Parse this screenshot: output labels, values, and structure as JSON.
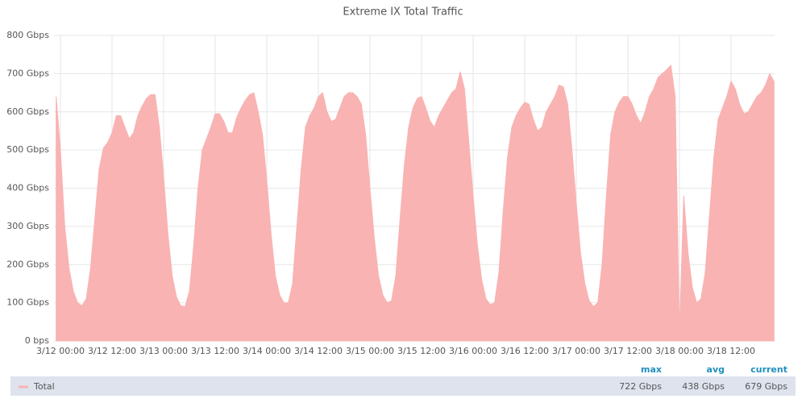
{
  "chart_data": {
    "type": "area",
    "title": "Extreme IX Total Traffic",
    "x": [
      "3/11 23:00",
      "3/12 00:00",
      "3/12 01:00",
      "3/12 02:00",
      "3/12 03:00",
      "3/12 04:00",
      "3/12 05:00",
      "3/12 06:00",
      "3/12 07:00",
      "3/12 08:00",
      "3/12 09:00",
      "3/12 10:00",
      "3/12 11:00",
      "3/12 12:00",
      "3/12 13:00",
      "3/12 14:00",
      "3/12 15:00",
      "3/12 16:00",
      "3/12 17:00",
      "3/12 18:00",
      "3/12 19:00",
      "3/12 20:00",
      "3/12 21:00",
      "3/12 22:00",
      "3/12 23:00",
      "3/13 00:00",
      "3/13 01:00",
      "3/13 02:00",
      "3/13 03:00",
      "3/13 04:00",
      "3/13 05:00",
      "3/13 06:00",
      "3/13 07:00",
      "3/13 08:00",
      "3/13 09:00",
      "3/13 10:00",
      "3/13 11:00",
      "3/13 12:00",
      "3/13 13:00",
      "3/13 14:00",
      "3/13 15:00",
      "3/13 16:00",
      "3/13 17:00",
      "3/13 18:00",
      "3/13 19:00",
      "3/13 20:00",
      "3/13 21:00",
      "3/13 22:00",
      "3/13 23:00",
      "3/14 00:00",
      "3/14 01:00",
      "3/14 02:00",
      "3/14 03:00",
      "3/14 04:00",
      "3/14 05:00",
      "3/14 06:00",
      "3/14 07:00",
      "3/14 08:00",
      "3/14 09:00",
      "3/14 10:00",
      "3/14 11:00",
      "3/14 12:00",
      "3/14 13:00",
      "3/14 14:00",
      "3/14 15:00",
      "3/14 16:00",
      "3/14 17:00",
      "3/14 18:00",
      "3/14 19:00",
      "3/14 20:00",
      "3/14 21:00",
      "3/14 22:00",
      "3/14 23:00",
      "3/15 00:00",
      "3/15 01:00",
      "3/15 02:00",
      "3/15 03:00",
      "3/15 04:00",
      "3/15 05:00",
      "3/15 06:00",
      "3/15 07:00",
      "3/15 08:00",
      "3/15 09:00",
      "3/15 10:00",
      "3/15 11:00",
      "3/15 12:00",
      "3/15 13:00",
      "3/15 14:00",
      "3/15 15:00",
      "3/15 16:00",
      "3/15 17:00",
      "3/15 18:00",
      "3/15 19:00",
      "3/15 20:00",
      "3/15 21:00",
      "3/15 22:00",
      "3/15 23:00",
      "3/16 00:00",
      "3/16 01:00",
      "3/16 02:00",
      "3/16 03:00",
      "3/16 04:00",
      "3/16 05:00",
      "3/16 06:00",
      "3/16 07:00",
      "3/16 08:00",
      "3/16 09:00",
      "3/16 10:00",
      "3/16 11:00",
      "3/16 12:00",
      "3/16 13:00",
      "3/16 14:00",
      "3/16 15:00",
      "3/16 16:00",
      "3/16 17:00",
      "3/16 18:00",
      "3/16 19:00",
      "3/16 20:00",
      "3/16 21:00",
      "3/16 22:00",
      "3/16 23:00",
      "3/17 00:00",
      "3/17 01:00",
      "3/17 02:00",
      "3/17 03:00",
      "3/17 04:00",
      "3/17 05:00",
      "3/17 06:00",
      "3/17 07:00",
      "3/17 08:00",
      "3/17 09:00",
      "3/17 10:00",
      "3/17 11:00",
      "3/17 12:00",
      "3/17 13:00",
      "3/17 14:00",
      "3/17 15:00",
      "3/17 16:00",
      "3/17 17:00",
      "3/17 18:00",
      "3/17 19:00",
      "3/17 20:00",
      "3/17 21:00",
      "3/17 22:00",
      "3/17 23:00",
      "3/18 00:00",
      "3/18 01:00",
      "3/18 02:00",
      "3/18 03:00",
      "3/18 04:00",
      "3/18 05:00",
      "3/18 06:00",
      "3/18 07:00",
      "3/18 08:00",
      "3/18 09:00",
      "3/18 10:00",
      "3/18 11:00",
      "3/18 12:00",
      "3/18 13:00",
      "3/18 14:00",
      "3/18 15:00",
      "3/18 16:00",
      "3/18 17:00",
      "3/18 18:00",
      "3/18 19:00",
      "3/18 20:00",
      "3/18 21:00",
      "3/18 22:00"
    ],
    "series": [
      {
        "name": "Total",
        "color": "#f9b3b3",
        "values": [
          640,
          500,
          300,
          190,
          130,
          100,
          92,
          110,
          190,
          320,
          450,
          505,
          520,
          545,
          590,
          590,
          560,
          530,
          545,
          590,
          615,
          635,
          645,
          645,
          560,
          430,
          280,
          170,
          115,
          92,
          90,
          130,
          250,
          400,
          500,
          530,
          560,
          595,
          595,
          575,
          545,
          545,
          585,
          610,
          630,
          645,
          650,
          600,
          540,
          420,
          280,
          170,
          120,
          100,
          100,
          150,
          300,
          450,
          560,
          590,
          610,
          640,
          650,
          600,
          575,
          580,
          610,
          640,
          650,
          650,
          640,
          620,
          540,
          400,
          270,
          170,
          120,
          100,
          105,
          170,
          320,
          460,
          560,
          610,
          635,
          640,
          610,
          575,
          560,
          590,
          610,
          630,
          650,
          660,
          705,
          660,
          520,
          380,
          250,
          160,
          110,
          95,
          100,
          180,
          340,
          480,
          560,
          590,
          610,
          625,
          620,
          580,
          550,
          560,
          600,
          620,
          640,
          670,
          665,
          620,
          500,
          360,
          230,
          150,
          105,
          90,
          100,
          200,
          380,
          540,
          600,
          625,
          640,
          640,
          620,
          590,
          570,
          600,
          640,
          660,
          690,
          700,
          710,
          722,
          640,
          20,
          380,
          230,
          140,
          100,
          110,
          180,
          330,
          480,
          580,
          610,
          640,
          680,
          660,
          620,
          595,
          600,
          620,
          640,
          650,
          670,
          700,
          679
        ],
        "stat_names": [
          "max",
          "avg",
          "current"
        ],
        "stat_values": [
          722,
          438,
          679
        ],
        "stat_labels": [
          "722 Gbps",
          "438 Gbps",
          "679 Gbps"
        ]
      }
    ],
    "ylim": [
      0,
      800
    ],
    "yticks": [
      {
        "value": 0,
        "label": "0 bps"
      },
      {
        "value": 100,
        "label": "100 Gbps"
      },
      {
        "value": 200,
        "label": "200 Gbps"
      },
      {
        "value": 300,
        "label": "300 Gbps"
      },
      {
        "value": 400,
        "label": "400 Gbps"
      },
      {
        "value": 500,
        "label": "500 Gbps"
      },
      {
        "value": 600,
        "label": "600 Gbps"
      },
      {
        "value": 700,
        "label": "700 Gbps"
      },
      {
        "value": 800,
        "label": "800 Gbps"
      }
    ],
    "xticks": [
      "3/12 00:00",
      "3/12 12:00",
      "3/13 00:00",
      "3/13 12:00",
      "3/14 00:00",
      "3/14 12:00",
      "3/15 00:00",
      "3/15 12:00",
      "3/16 00:00",
      "3/16 12:00",
      "3/17 00:00",
      "3/17 12:00",
      "3/18 00:00",
      "3/18 12:00"
    ],
    "grid": true
  }
}
